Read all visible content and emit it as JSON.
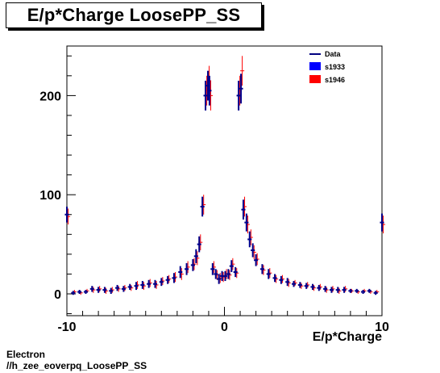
{
  "title": "E/p*Charge LoosePP_SS",
  "footer": {
    "line1": "Electron",
    "line2": "//h_zee_eoverpq_LoosePP_SS"
  },
  "chart_data": {
    "type": "scatter",
    "title": "E/p*Charge LoosePP_SS",
    "xlabel": "E/p*Charge",
    "ylabel": "",
    "xlim": [
      -10,
      10
    ],
    "ylim": [
      -22,
      250
    ],
    "x_ticks": [
      "-10",
      "0",
      "10"
    ],
    "y_ticks": [
      "0",
      "100",
      "200"
    ],
    "grid": false,
    "legend_position": "top-right",
    "legend": [
      {
        "label": "Data",
        "color": "#000080",
        "marker": "line"
      },
      {
        "label": "s1933",
        "color": "#0000ff",
        "marker": "box"
      },
      {
        "label": "s1946",
        "color": "#ff0000",
        "marker": "box"
      }
    ],
    "series": [
      {
        "name": "s1933",
        "color": "#00008b",
        "x": [
          -10.0,
          -9.6,
          -9.2,
          -8.8,
          -8.4,
          -8.0,
          -7.6,
          -7.2,
          -6.8,
          -6.4,
          -6.0,
          -5.6,
          -5.2,
          -4.8,
          -4.4,
          -4.0,
          -3.6,
          -3.2,
          -2.8,
          -2.4,
          -2.0,
          -1.8,
          -1.6,
          -1.4,
          -1.2,
          -1.05,
          -0.95,
          -0.75,
          -0.55,
          -0.35,
          -0.15,
          0.05,
          0.25,
          0.45,
          0.7,
          0.9,
          1.05,
          1.2,
          1.4,
          1.6,
          1.8,
          2.0,
          2.4,
          2.8,
          3.2,
          3.6,
          4.0,
          4.4,
          4.8,
          5.2,
          5.6,
          6.0,
          6.4,
          6.8,
          7.2,
          7.6,
          8.0,
          8.4,
          8.8,
          9.2,
          9.6,
          10.0
        ],
        "y": [
          80,
          1,
          2,
          2,
          5,
          4,
          4,
          3,
          6,
          5,
          7,
          8,
          9,
          10,
          10,
          12,
          14,
          16,
          22,
          25,
          29,
          38,
          50,
          88,
          200,
          210,
          205,
          25,
          20,
          15,
          18,
          18,
          20,
          28,
          22,
          200,
          207,
          85,
          72,
          55,
          44,
          34,
          25,
          20,
          16,
          14,
          12,
          10,
          9,
          8,
          7,
          6,
          5,
          4,
          4,
          4,
          3,
          3,
          2,
          3,
          1,
          72
        ],
        "err": [
          8,
          2,
          2,
          2,
          3,
          3,
          3,
          3,
          3,
          3,
          3,
          4,
          4,
          4,
          4,
          4,
          4,
          5,
          6,
          6,
          6,
          7,
          8,
          10,
          15,
          15,
          15,
          6,
          5,
          5,
          5,
          5,
          5,
          6,
          5,
          15,
          15,
          10,
          9,
          8,
          7,
          6,
          5,
          5,
          4,
          4,
          4,
          3,
          3,
          3,
          3,
          3,
          3,
          3,
          3,
          3,
          2,
          2,
          2,
          2,
          2,
          9
        ]
      },
      {
        "name": "s1946",
        "color": "#ff0000",
        "x": [
          -10.0,
          -9.6,
          -9.2,
          -8.8,
          -8.4,
          -8.0,
          -7.6,
          -7.2,
          -6.8,
          -6.4,
          -6.0,
          -5.6,
          -5.2,
          -4.8,
          -4.4,
          -4.0,
          -3.6,
          -3.2,
          -2.8,
          -2.4,
          -2.0,
          -1.8,
          -1.6,
          -1.4,
          -1.2,
          -1.05,
          -0.95,
          -0.75,
          -0.55,
          -0.35,
          -0.15,
          0.05,
          0.25,
          0.45,
          0.7,
          0.9,
          1.05,
          1.2,
          1.4,
          1.6,
          1.8,
          2.0,
          2.4,
          2.8,
          3.2,
          3.6,
          4.0,
          4.4,
          4.8,
          5.2,
          5.6,
          6.0,
          6.4,
          6.8,
          7.2,
          7.6,
          8.0,
          8.4,
          8.8,
          9.2,
          9.6,
          10.0
        ],
        "y": [
          78,
          2,
          1,
          3,
          4,
          5,
          3,
          4,
          5,
          6,
          6,
          9,
          8,
          11,
          9,
          13,
          15,
          17,
          20,
          27,
          30,
          36,
          52,
          90,
          205,
          215,
          200,
          27,
          19,
          16,
          17,
          20,
          19,
          30,
          21,
          205,
          225,
          88,
          70,
          57,
          42,
          35,
          24,
          21,
          15,
          15,
          11,
          11,
          8,
          9,
          6,
          7,
          4,
          5,
          3,
          5,
          3,
          2,
          3,
          2,
          2,
          70
        ],
        "err": [
          8,
          2,
          2,
          2,
          3,
          3,
          3,
          3,
          3,
          3,
          3,
          4,
          4,
          4,
          4,
          4,
          4,
          5,
          6,
          6,
          6,
          7,
          8,
          10,
          15,
          15,
          15,
          6,
          5,
          5,
          5,
          5,
          5,
          6,
          5,
          15,
          15,
          10,
          9,
          8,
          7,
          6,
          5,
          5,
          4,
          4,
          4,
          3,
          3,
          3,
          3,
          3,
          3,
          3,
          3,
          3,
          2,
          2,
          2,
          2,
          2,
          9
        ]
      }
    ]
  }
}
